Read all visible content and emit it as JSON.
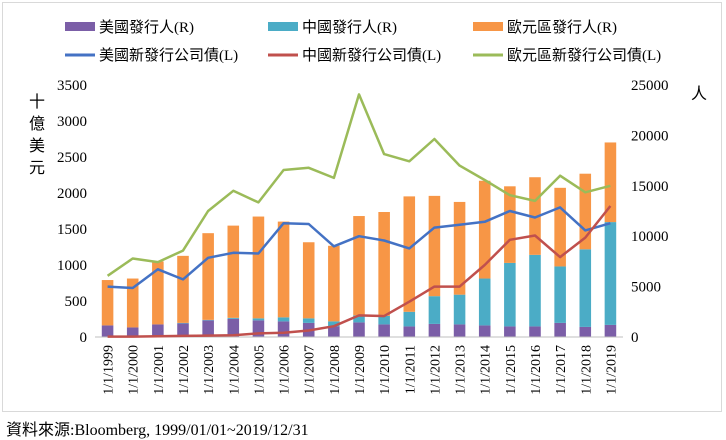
{
  "chart_data": {
    "type": "bar+line",
    "categories": [
      "1/1/1999",
      "1/1/2000",
      "1/1/2001",
      "1/1/2002",
      "1/1/2003",
      "1/1/2004",
      "1/1/2005",
      "1/1/2006",
      "1/1/2007",
      "1/1/2008",
      "1/1/2009",
      "1/1/2010",
      "1/1/2011",
      "1/1/2012",
      "1/1/2013",
      "1/1/2014",
      "1/1/2015",
      "1/1/2016",
      "1/1/2017",
      "1/1/2018",
      "1/1/2019"
    ],
    "left_axis": {
      "label": "十億美元",
      "min": 0,
      "max": 3500,
      "ticks": [
        "0",
        "500",
        "1000",
        "1500",
        "2000",
        "2500",
        "3000",
        "3500"
      ]
    },
    "right_axis": {
      "label": "人",
      "min": 0,
      "max": 25000,
      "ticks": [
        "0",
        "5000",
        "10000",
        "15000",
        "20000",
        "25000"
      ]
    },
    "bar_series": [
      {
        "name": "美國發行人(R)",
        "color": "#7b5ea7",
        "values": [
          1150,
          950,
          1250,
          1350,
          1650,
          1800,
          1650,
          1550,
          1400,
          1050,
          1450,
          1250,
          1050,
          1300,
          1250,
          1150,
          1050,
          1050,
          1400,
          1000,
          1200
        ]
      },
      {
        "name": "中國發行人(R)",
        "color": "#4bacc6",
        "values": [
          0,
          0,
          0,
          50,
          50,
          100,
          200,
          400,
          450,
          500,
          700,
          850,
          1450,
          2750,
          2950,
          4650,
          6300,
          7100,
          5600,
          7700,
          10200
        ]
      },
      {
        "name": "歐元區發行人(R)",
        "color": "#f79646",
        "values": [
          4500,
          4850,
          6250,
          6650,
          8600,
          9150,
          10100,
          9500,
          7550,
          7500,
          9850,
          10300,
          11450,
          9950,
          9200,
          9700,
          7600,
          7700,
          7800,
          7500,
          7900
        ]
      }
    ],
    "line_series": [
      {
        "name": "美國新發行公司債(L)",
        "color": "#4472c4",
        "values": [
          700,
          680,
          940,
          800,
          1100,
          1170,
          1160,
          1580,
          1570,
          1260,
          1400,
          1340,
          1230,
          1520,
          1560,
          1600,
          1750,
          1660,
          1800,
          1480,
          1580
        ]
      },
      {
        "name": "中國新發行公司債(L)",
        "color": "#c0504d",
        "values": [
          5,
          5,
          10,
          15,
          20,
          25,
          50,
          60,
          90,
          150,
          300,
          290,
          490,
          700,
          700,
          1000,
          1350,
          1410,
          1110,
          1380,
          1820
        ]
      },
      {
        "name": "歐元區新發行公司債(L)",
        "color": "#9bbb59",
        "values": [
          850,
          1090,
          1040,
          1200,
          1750,
          2030,
          1870,
          2320,
          2350,
          2210,
          3370,
          2540,
          2440,
          2750,
          2380,
          2180,
          1970,
          1890,
          2240,
          2010,
          2100
        ]
      }
    ]
  },
  "source_note": "資料來源:Bloomberg, 1999/01/01~2019/12/31"
}
